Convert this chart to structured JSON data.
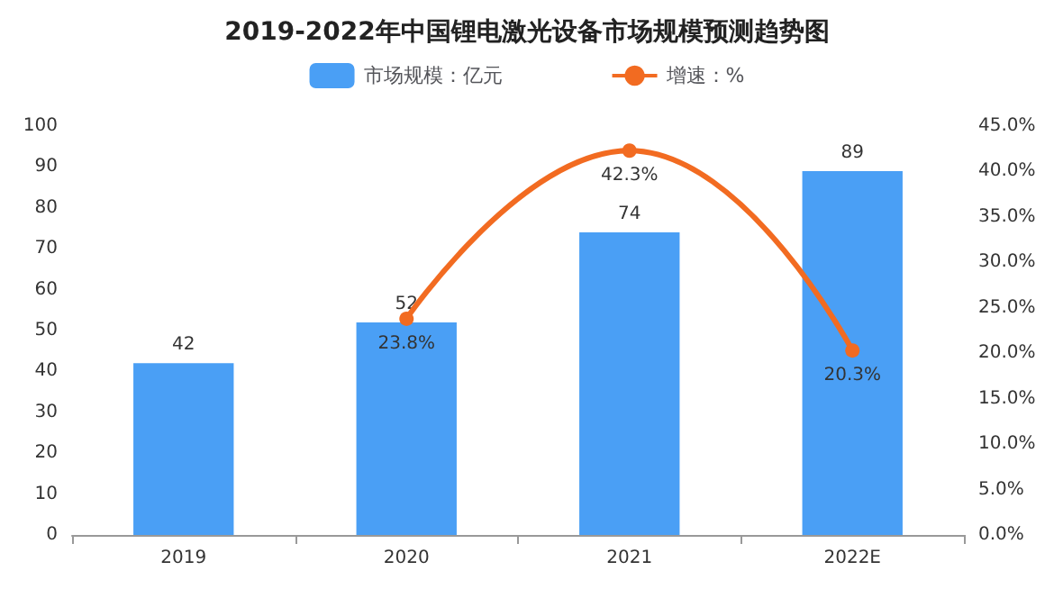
{
  "chart_data": {
    "type": "bar",
    "title": "2019-2022年中国锂电激光设备市场规模预测趋势图",
    "categories": [
      "2019",
      "2020",
      "2021",
      "2022E"
    ],
    "series": [
      {
        "name": "市场规模：亿元",
        "color": "#4a9ff5",
        "values": [
          42,
          52,
          74,
          89
        ],
        "value_labels": [
          "42",
          "52",
          "74",
          "89"
        ]
      },
      {
        "name": "增速：%",
        "type": "line",
        "axis": "y2",
        "color": "#f26b21",
        "values": [
          null,
          23.8,
          42.3,
          20.3
        ],
        "value_labels": [
          null,
          "23.8%",
          "42.3%",
          "20.3%"
        ]
      }
    ],
    "ylim": [
      0,
      100
    ],
    "yticks": [
      0,
      10,
      20,
      30,
      40,
      50,
      60,
      70,
      80,
      90,
      100
    ],
    "y2lim": [
      0,
      45
    ],
    "y2ticks": [
      {
        "value": 0,
        "label": "0.0%"
      },
      {
        "value": 5,
        "label": "5.0%"
      },
      {
        "value": 10,
        "label": "10.0%"
      },
      {
        "value": 15,
        "label": "15.0%"
      },
      {
        "value": 20,
        "label": "20.0%"
      },
      {
        "value": 25,
        "label": "25.0%"
      },
      {
        "value": 30,
        "label": "30.0%"
      },
      {
        "value": 35,
        "label": "35.0%"
      },
      {
        "value": 40,
        "label": "40.0%"
      },
      {
        "value": 45,
        "label": "45.0%"
      }
    ],
    "grid": false,
    "legend": "top",
    "marker": "circle"
  }
}
